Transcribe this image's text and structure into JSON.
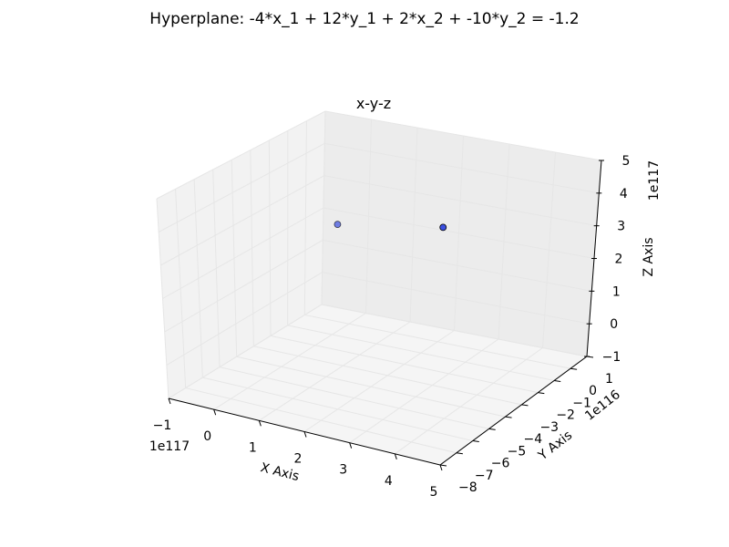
{
  "figure": {
    "suptitle": "Hyperplane: -4*x_1 + 12*y_1 + 2*x_2 + -10*y_2 = -1.2"
  },
  "colors": {
    "pane_back": "#ececec",
    "pane_left": "#f2f2f2",
    "pane_floor": "#f5f5f5",
    "point_fill": "#3b4fe0",
    "point_edge": "#000000"
  },
  "chart_data": {
    "type": "scatter",
    "projection": "3d",
    "title": "x-y-z",
    "xlabel": "X Axis",
    "ylabel": "Y Axis",
    "zlabel": "Z Axis",
    "x_offset_label": "1e117",
    "y_offset_label": "1e116",
    "z_offset_label": "1e117",
    "xlim": [
      -1,
      5
    ],
    "ylim": [
      -8,
      1
    ],
    "zlim": [
      -1,
      5
    ],
    "x_ticks": [
      "−1",
      "0",
      "1",
      "2",
      "3",
      "4",
      "5"
    ],
    "y_ticks": [
      "−8",
      "−7",
      "−6",
      "−5",
      "−4",
      "−3",
      "−2",
      "−1",
      "0",
      "1"
    ],
    "z_ticks": [
      "−1",
      "0",
      "1",
      "2",
      "3",
      "4",
      "5"
    ],
    "grid": true,
    "points": [
      {
        "x": 2.1,
        "y": -0.2,
        "z": 2.6,
        "opacity": 1.0
      },
      {
        "x": -0.1,
        "y": -0.5,
        "z": 2.2,
        "opacity": 0.7
      }
    ]
  }
}
